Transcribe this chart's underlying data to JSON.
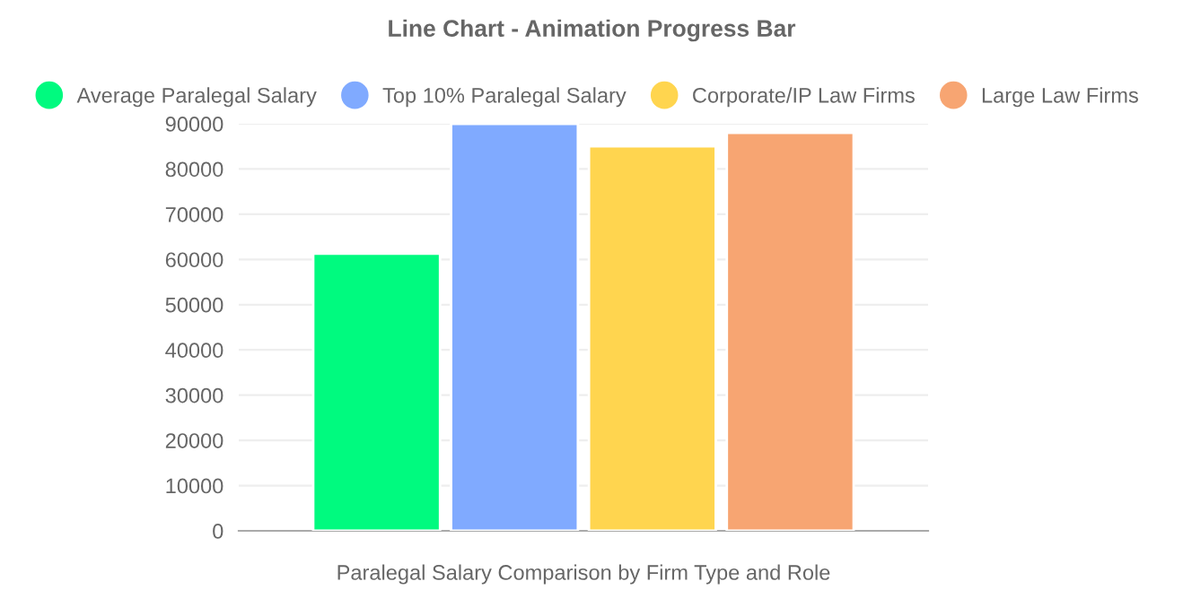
{
  "chart_data": {
    "type": "bar",
    "title": "Line Chart - Animation Progress Bar",
    "xlabel": "Paralegal Salary Comparison by Firm Type and Role",
    "categories": [
      null
    ],
    "series": [
      {
        "name": "Average Paralegal Salary",
        "color": "#00fa7f",
        "values": [
          61300
        ]
      },
      {
        "name": "Top 10% Paralegal Salary",
        "color": "#80aaff",
        "values": [
          90000
        ]
      },
      {
        "name": "Corporate/IP Law Firms",
        "color": "#ffd54f",
        "values": [
          85000
        ]
      },
      {
        "name": "Large Law Firms",
        "color": "#f7a572",
        "values": [
          88000
        ]
      }
    ],
    "ylim": [
      0,
      90000
    ],
    "yticks": [
      0,
      10000,
      20000,
      30000,
      40000,
      50000,
      60000,
      70000,
      80000,
      90000
    ],
    "grid": "y",
    "legend": "top"
  }
}
